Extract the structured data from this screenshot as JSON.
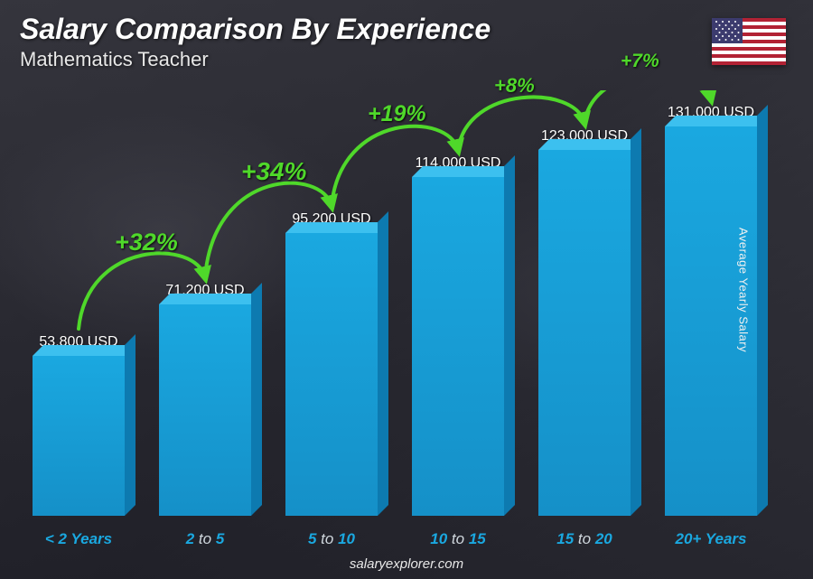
{
  "header": {
    "title": "Salary Comparison By Experience",
    "subtitle": "Mathematics Teacher",
    "title_fontsize": 32,
    "subtitle_fontsize": 22,
    "title_color": "#ffffff"
  },
  "flag": {
    "country": "United States",
    "stripe_red": "#b22234",
    "stripe_white": "#ffffff",
    "canton_blue": "#3c3b6e"
  },
  "chart": {
    "type": "bar",
    "bar_color_front": "#1aa8e0",
    "bar_color_top": "#3cc0ef",
    "bar_color_side": "#0d7ab0",
    "value_label_color": "#ffffff",
    "value_label_fontsize": 16,
    "category_label_color": "#1aa8e0",
    "category_label_secondary_color": "#cfd6dc",
    "category_label_fontsize": 17,
    "background_gradient": [
      "#3a3a42",
      "#2a2a32",
      "#4a4a52"
    ],
    "arc_color": "#4fd82a",
    "arc_label_fontsize_max": 28,
    "arc_label_fontsize_min": 20,
    "y_max": 131000,
    "bars": [
      {
        "category_html": "< 2 Years",
        "category_a": "< 2",
        "category_b": "Years",
        "value": 53800,
        "value_label": "53,800 USD"
      },
      {
        "category_html": "2 to 5",
        "category_a": "2",
        "category_mid": "to",
        "category_b": "5",
        "value": 71200,
        "value_label": "71,200 USD"
      },
      {
        "category_html": "5 to 10",
        "category_a": "5",
        "category_mid": "to",
        "category_b": "10",
        "value": 95200,
        "value_label": "95,200 USD"
      },
      {
        "category_html": "10 to 15",
        "category_a": "10",
        "category_mid": "to",
        "category_b": "15",
        "value": 114000,
        "value_label": "114,000 USD"
      },
      {
        "category_html": "15 to 20",
        "category_a": "15",
        "category_mid": "to",
        "category_b": "20",
        "value": 123000,
        "value_label": "123,000 USD"
      },
      {
        "category_html": "20+ Years",
        "category_a": "20+",
        "category_b": "Years",
        "value": 131000,
        "value_label": "131,000 USD"
      }
    ],
    "increases": [
      {
        "from": 0,
        "to": 1,
        "label": "+32%",
        "fontsize": 27
      },
      {
        "from": 1,
        "to": 2,
        "label": "+34%",
        "fontsize": 28
      },
      {
        "from": 2,
        "to": 3,
        "label": "+19%",
        "fontsize": 25
      },
      {
        "from": 3,
        "to": 4,
        "label": "+8%",
        "fontsize": 22
      },
      {
        "from": 4,
        "to": 5,
        "label": "+7%",
        "fontsize": 21
      }
    ]
  },
  "y_axis_label": "Average Yearly Salary",
  "footer": "salaryexplorer.com"
}
